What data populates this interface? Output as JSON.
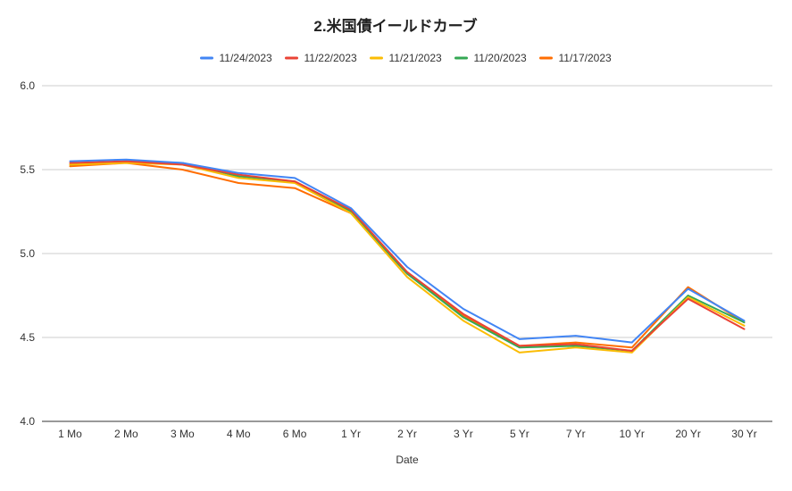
{
  "chart_data": {
    "type": "line",
    "title": "2.米国債イールドカーブ",
    "xlabel": "Date",
    "ylabel": "",
    "ylim": [
      4.0,
      6.0
    ],
    "yticks": [
      "4.0",
      "4.5",
      "5.0",
      "5.5",
      "6.0"
    ],
    "grid": true,
    "legend_position": "top",
    "categories": [
      "1 Mo",
      "2 Mo",
      "3 Mo",
      "4 Mo",
      "6 Mo",
      "1 Yr",
      "2 Yr",
      "3 Yr",
      "5 Yr",
      "7 Yr",
      "10 Yr",
      "20 Yr",
      "30 Yr"
    ],
    "series": [
      {
        "name": "11/24/2023",
        "color": "#4285F4",
        "values": [
          5.55,
          5.56,
          5.54,
          5.48,
          5.45,
          5.27,
          4.92,
          4.67,
          4.49,
          4.51,
          4.47,
          4.79,
          4.6
        ]
      },
      {
        "name": "11/22/2023",
        "color": "#EA4335",
        "values": [
          5.54,
          5.55,
          5.53,
          5.47,
          5.43,
          5.26,
          4.89,
          4.64,
          4.45,
          4.46,
          4.42,
          4.73,
          4.55
        ]
      },
      {
        "name": "11/21/2023",
        "color": "#FBBC04",
        "values": [
          5.53,
          5.54,
          5.53,
          5.45,
          5.42,
          5.24,
          4.86,
          4.6,
          4.41,
          4.44,
          4.41,
          4.74,
          4.57
        ]
      },
      {
        "name": "11/20/2023",
        "color": "#34A853",
        "values": [
          5.53,
          5.55,
          5.54,
          5.46,
          5.43,
          5.25,
          4.88,
          4.62,
          4.44,
          4.45,
          4.42,
          4.75,
          4.59
        ]
      },
      {
        "name": "11/17/2023",
        "color": "#FF6D01",
        "values": [
          5.52,
          5.54,
          5.5,
          5.42,
          5.39,
          5.24,
          4.88,
          4.63,
          4.45,
          4.47,
          4.44,
          4.8,
          4.59
        ]
      }
    ]
  }
}
